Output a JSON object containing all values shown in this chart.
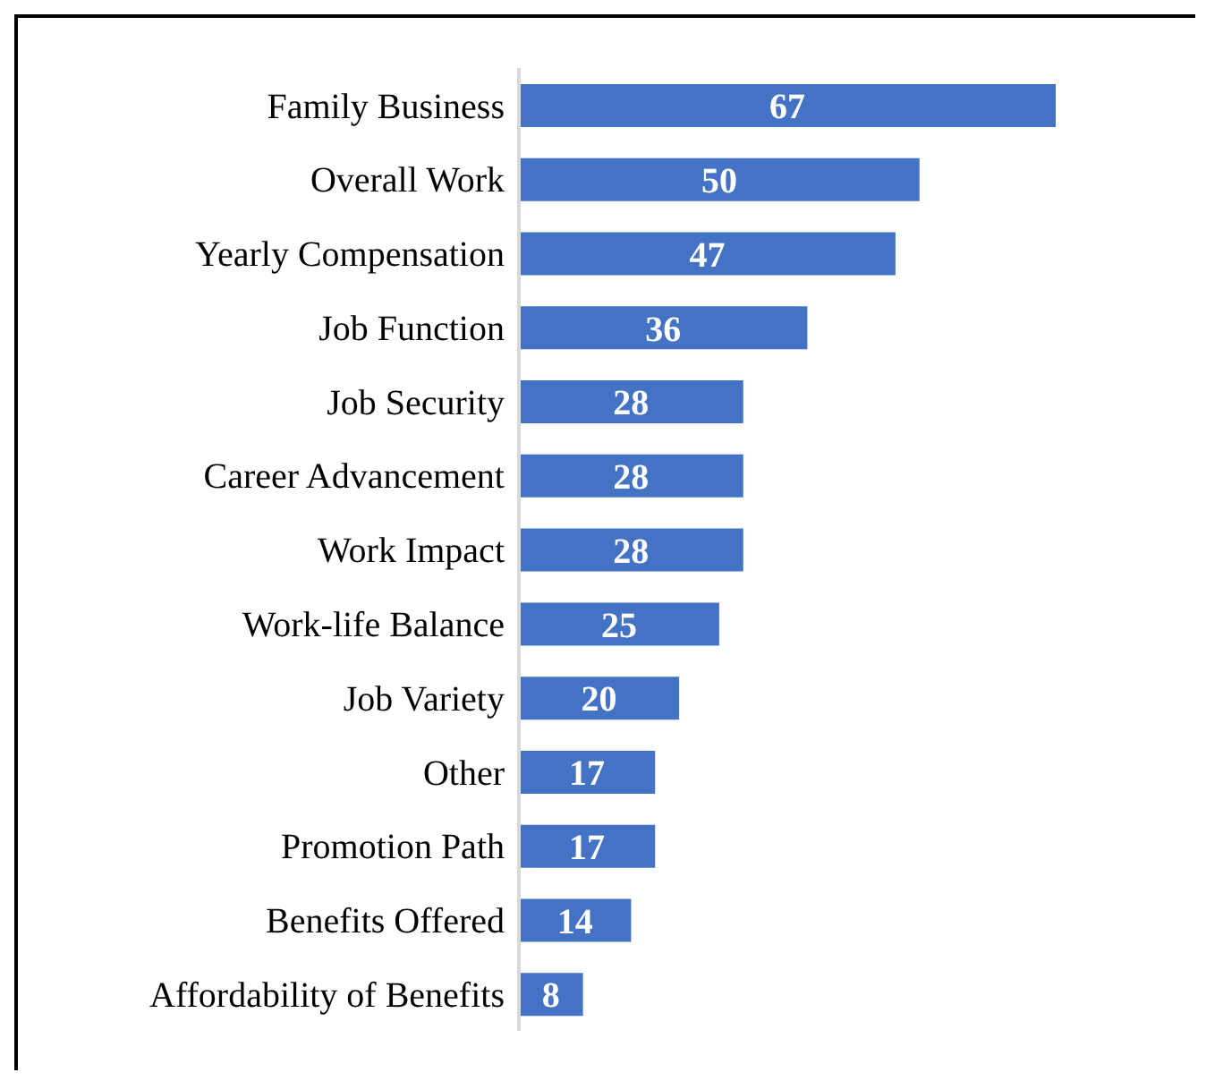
{
  "chart_data": {
    "type": "bar",
    "orientation": "horizontal",
    "categories": [
      "Family Business",
      "Overall Work",
      "Yearly Compensation",
      "Job Function",
      "Job Security",
      "Career Advancement",
      "Work Impact",
      "Work-life Balance",
      "Job Variety",
      "Other",
      "Promotion Path",
      "Benefits Offered",
      "Affordability of Benefits"
    ],
    "values": [
      67,
      50,
      47,
      36,
      28,
      28,
      28,
      25,
      20,
      17,
      17,
      14,
      8
    ],
    "color": "#4472c4",
    "data_labels": true
  }
}
